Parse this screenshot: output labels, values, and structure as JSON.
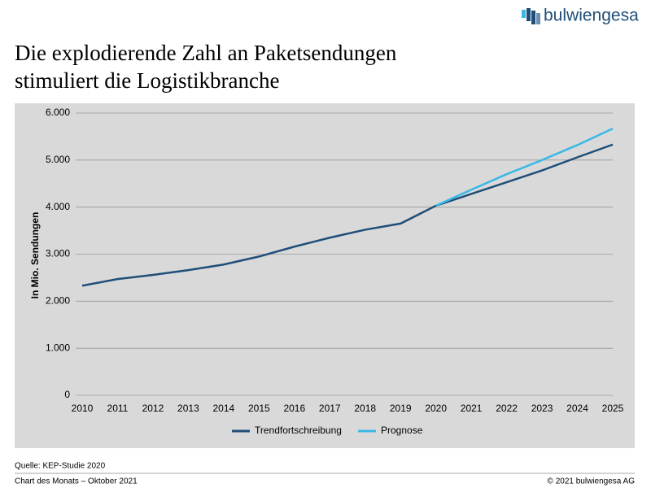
{
  "header": {
    "logo": "bulwiengesa"
  },
  "chart_data": {
    "type": "line",
    "title": [
      "Die explodierende Zahl an Paketsendungen",
      "stimuliert die Logistikbranche"
    ],
    "y_label": "In Mio. Sendungen",
    "categories": [
      "2010",
      "2011",
      "2012",
      "2013",
      "2014",
      "2015",
      "2016",
      "2017",
      "2018",
      "2019",
      "2020",
      "2021",
      "2022",
      "2023",
      "2024",
      "2025"
    ],
    "series": [
      {
        "name": "Trendfortschreibung",
        "color": "#1f4e79",
        "values": [
          2330,
          2470,
          2560,
          2660,
          2780,
          2950,
          3160,
          3350,
          3520,
          3650,
          4030,
          4280,
          4530,
          4780,
          5060,
          5330
        ]
      },
      {
        "name": "Prognose",
        "color": "#3ab8e6",
        "values": [
          null,
          null,
          null,
          null,
          null,
          null,
          null,
          null,
          null,
          null,
          4030,
          4370,
          4700,
          5000,
          5320,
          5670
        ]
      }
    ],
    "ylim": [
      0,
      6000
    ],
    "yticks": [
      0,
      {
        "value": 1000,
        "label": "1.000"
      },
      {
        "value": 2000,
        "label": "2.000"
      },
      {
        "value": 3000,
        "label": "3.000"
      },
      {
        "value": 4000,
        "label": "4.000"
      },
      {
        "value": 5000,
        "label": "5.000"
      },
      {
        "value": 6000,
        "label": "6.000"
      }
    ],
    "grid": true,
    "legend": "bottom",
    "background": "#d9d9d9"
  },
  "footer": {
    "source": "Quelle: KEP-Studie 2020",
    "series_name": "Chart des Monats – Oktober 2021",
    "copyright": "© 2021 bulwiengesa AG"
  }
}
